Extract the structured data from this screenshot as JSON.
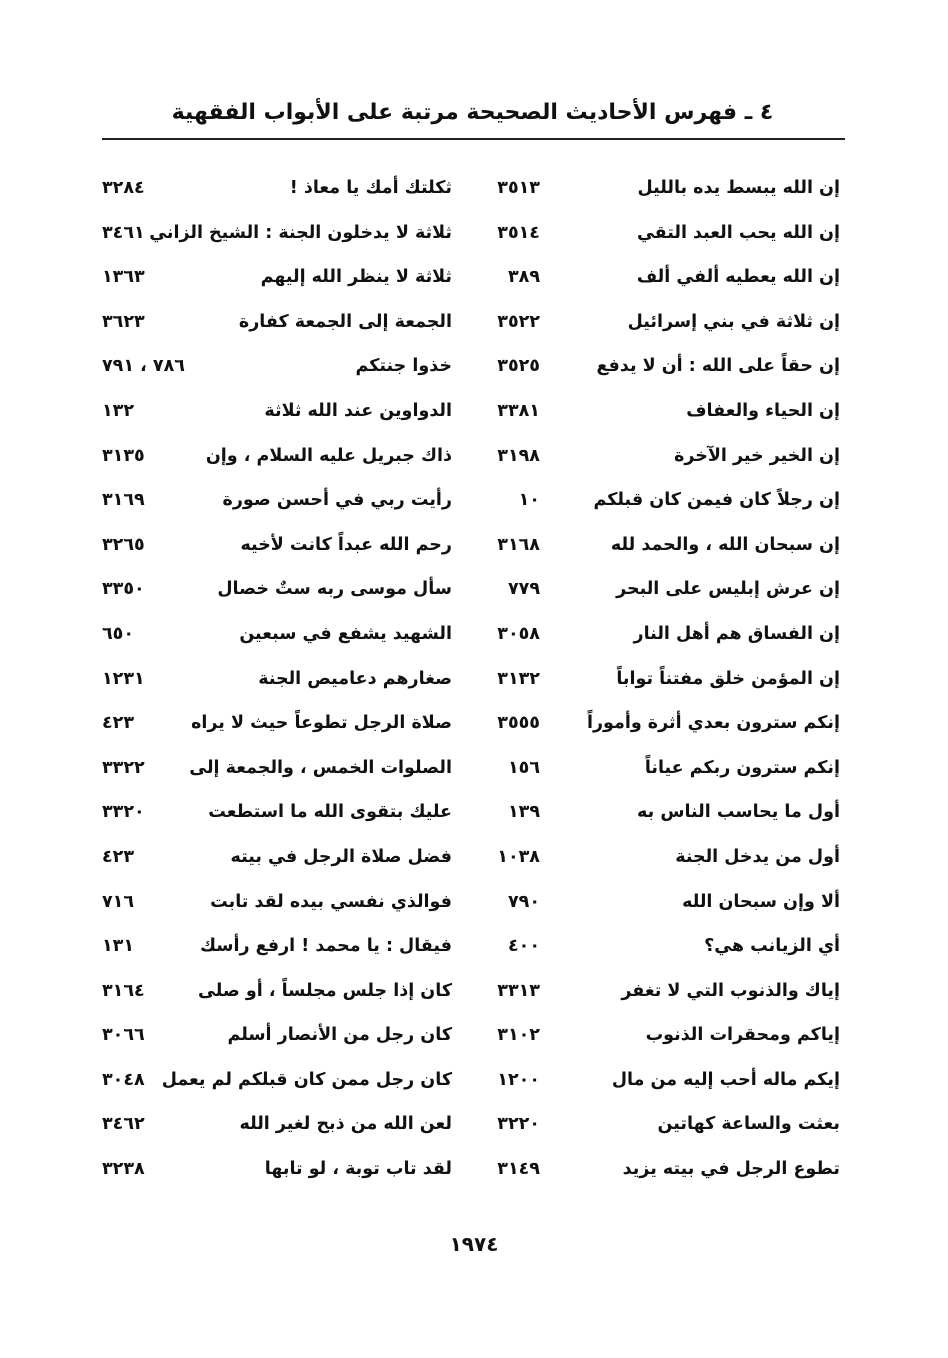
{
  "header": {
    "title": "٤ ـ فهرس الأحاديث الصحيحة مرتبة على الأبواب الفقهية"
  },
  "rows": [
    {
      "t1": "إن الله يبسط يده بالليل",
      "n1": "٣٥١٣",
      "t2": "ثكلتك أمك يا معاذ !",
      "n2": "٣٢٨٤"
    },
    {
      "t1": "إن الله يحب العبد التقي",
      "n1": "٣٥١٤",
      "t2": "ثلاثة لا يدخلون الجنة : الشيخ الزاني",
      "n2": "٣٤٦١"
    },
    {
      "t1": "إن الله يعطيه ألفي ألف",
      "n1": "٣٨٩",
      "t2": "ثلاثة لا ينظر الله إليهم",
      "n2": "١٣٦٣"
    },
    {
      "t1": "إن ثلاثة في بني إسرائيل",
      "n1": "٣٥٢٢",
      "t2": "الجمعة إلى الجمعة كفارة",
      "n2": "٣٦٢٣"
    },
    {
      "t1": "إن حقاً على الله : أن لا يدفع",
      "n1": "٣٥٢٥",
      "t2": "خذوا جنتكم",
      "n2": "٧٨٦ ، ٧٩١"
    },
    {
      "t1": "إن الحياء والعفاف",
      "n1": "٣٣٨١",
      "t2": "الدواوين عند الله ثلاثة",
      "n2": "١٣٢"
    },
    {
      "t1": "إن الخير خير الآخرة",
      "n1": "٣١٩٨",
      "t2": "ذاك جبريل عليه السلام ، وإن",
      "n2": "٣١٣٥"
    },
    {
      "t1": "إن رجلاً كان فيمن كان قبلكم",
      "n1": "١٠",
      "t2": "رأيت ربي في أحسن صورة",
      "n2": "٣١٦٩"
    },
    {
      "t1": "إن سبحان الله ، والحمد لله",
      "n1": "٣١٦٨",
      "t2": "رحم الله عبداً كانت لأخيه",
      "n2": "٣٢٦٥"
    },
    {
      "t1": "إن عرش إبليس على البحر",
      "n1": "٧٧٩",
      "t2": "سأل موسى ربه ستٌ خصال",
      "n2": "٣٣٥٠"
    },
    {
      "t1": "إن الفساق هم أهل النار",
      "n1": "٣٠٥٨",
      "t2": "الشهيد يشفع في سبعين",
      "n2": "٦٥٠"
    },
    {
      "t1": "إن المؤمن خلق مفتناً تواباً",
      "n1": "٣١٣٢",
      "t2": "صغارهم دعاميص الجنة",
      "n2": "١٢٣١"
    },
    {
      "t1": "إنكم سترون بعدي أثرة وأموراً",
      "n1": "٣٥٥٥",
      "t2": "صلاة الرجل تطوعاً حيث لا يراه",
      "n2": "٤٢٣"
    },
    {
      "t1": "إنكم سترون ربكم عياناً",
      "n1": "١٥٦",
      "t2": "الصلوات الخمس ، والجمعة إلى",
      "n2": "٣٣٢٢"
    },
    {
      "t1": "أول ما يحاسب الناس به",
      "n1": "١٣٩",
      "t2": "عليك بتقوى الله ما استطعت",
      "n2": "٣٣٢٠"
    },
    {
      "t1": "أول من يدخل الجنة",
      "n1": "١٠٣٨",
      "t2": "فضل صلاة الرجل في بيته",
      "n2": "٤٢٣"
    },
    {
      "t1": "ألا وإن سبحان الله",
      "n1": "٧٩٠",
      "t2": "فوالذي نفسي بيده لقد تابت",
      "n2": "٧١٦"
    },
    {
      "t1": "أي الزيانب هي؟",
      "n1": "٤٠٠",
      "t2": "فيقال : يا محمد ! ارفع رأسك",
      "n2": "١٣١"
    },
    {
      "t1": "إياك والذنوب التي لا تغفر",
      "n1": "٣٣١٣",
      "t2": "كان إذا جلس مجلساً ، أو صلى",
      "n2": "٣١٦٤"
    },
    {
      "t1": "إياكم ومحقرات الذنوب",
      "n1": "٣١٠٢",
      "t2": "كان رجل من الأنصار أسلم",
      "n2": "٣٠٦٦"
    },
    {
      "t1": "إيكم ماله أحب إليه من مال",
      "n1": "١٢٠٠",
      "t2": "كان رجل ممن كان قبلكم لم يعمل",
      "n2": "٣٠٤٨"
    },
    {
      "t1": "بعثت والساعة كهاتين",
      "n1": "٣٢٢٠",
      "t2": "لعن الله من ذبح لغير الله",
      "n2": "٣٤٦٢"
    },
    {
      "t1": "تطوع الرجل في بيته يزيد",
      "n1": "٣١٤٩",
      "t2": "لقد تاب توبة ، لو تابها",
      "n2": "٣٢٣٨"
    }
  ],
  "footer": {
    "page_number": "١٩٧٤"
  }
}
